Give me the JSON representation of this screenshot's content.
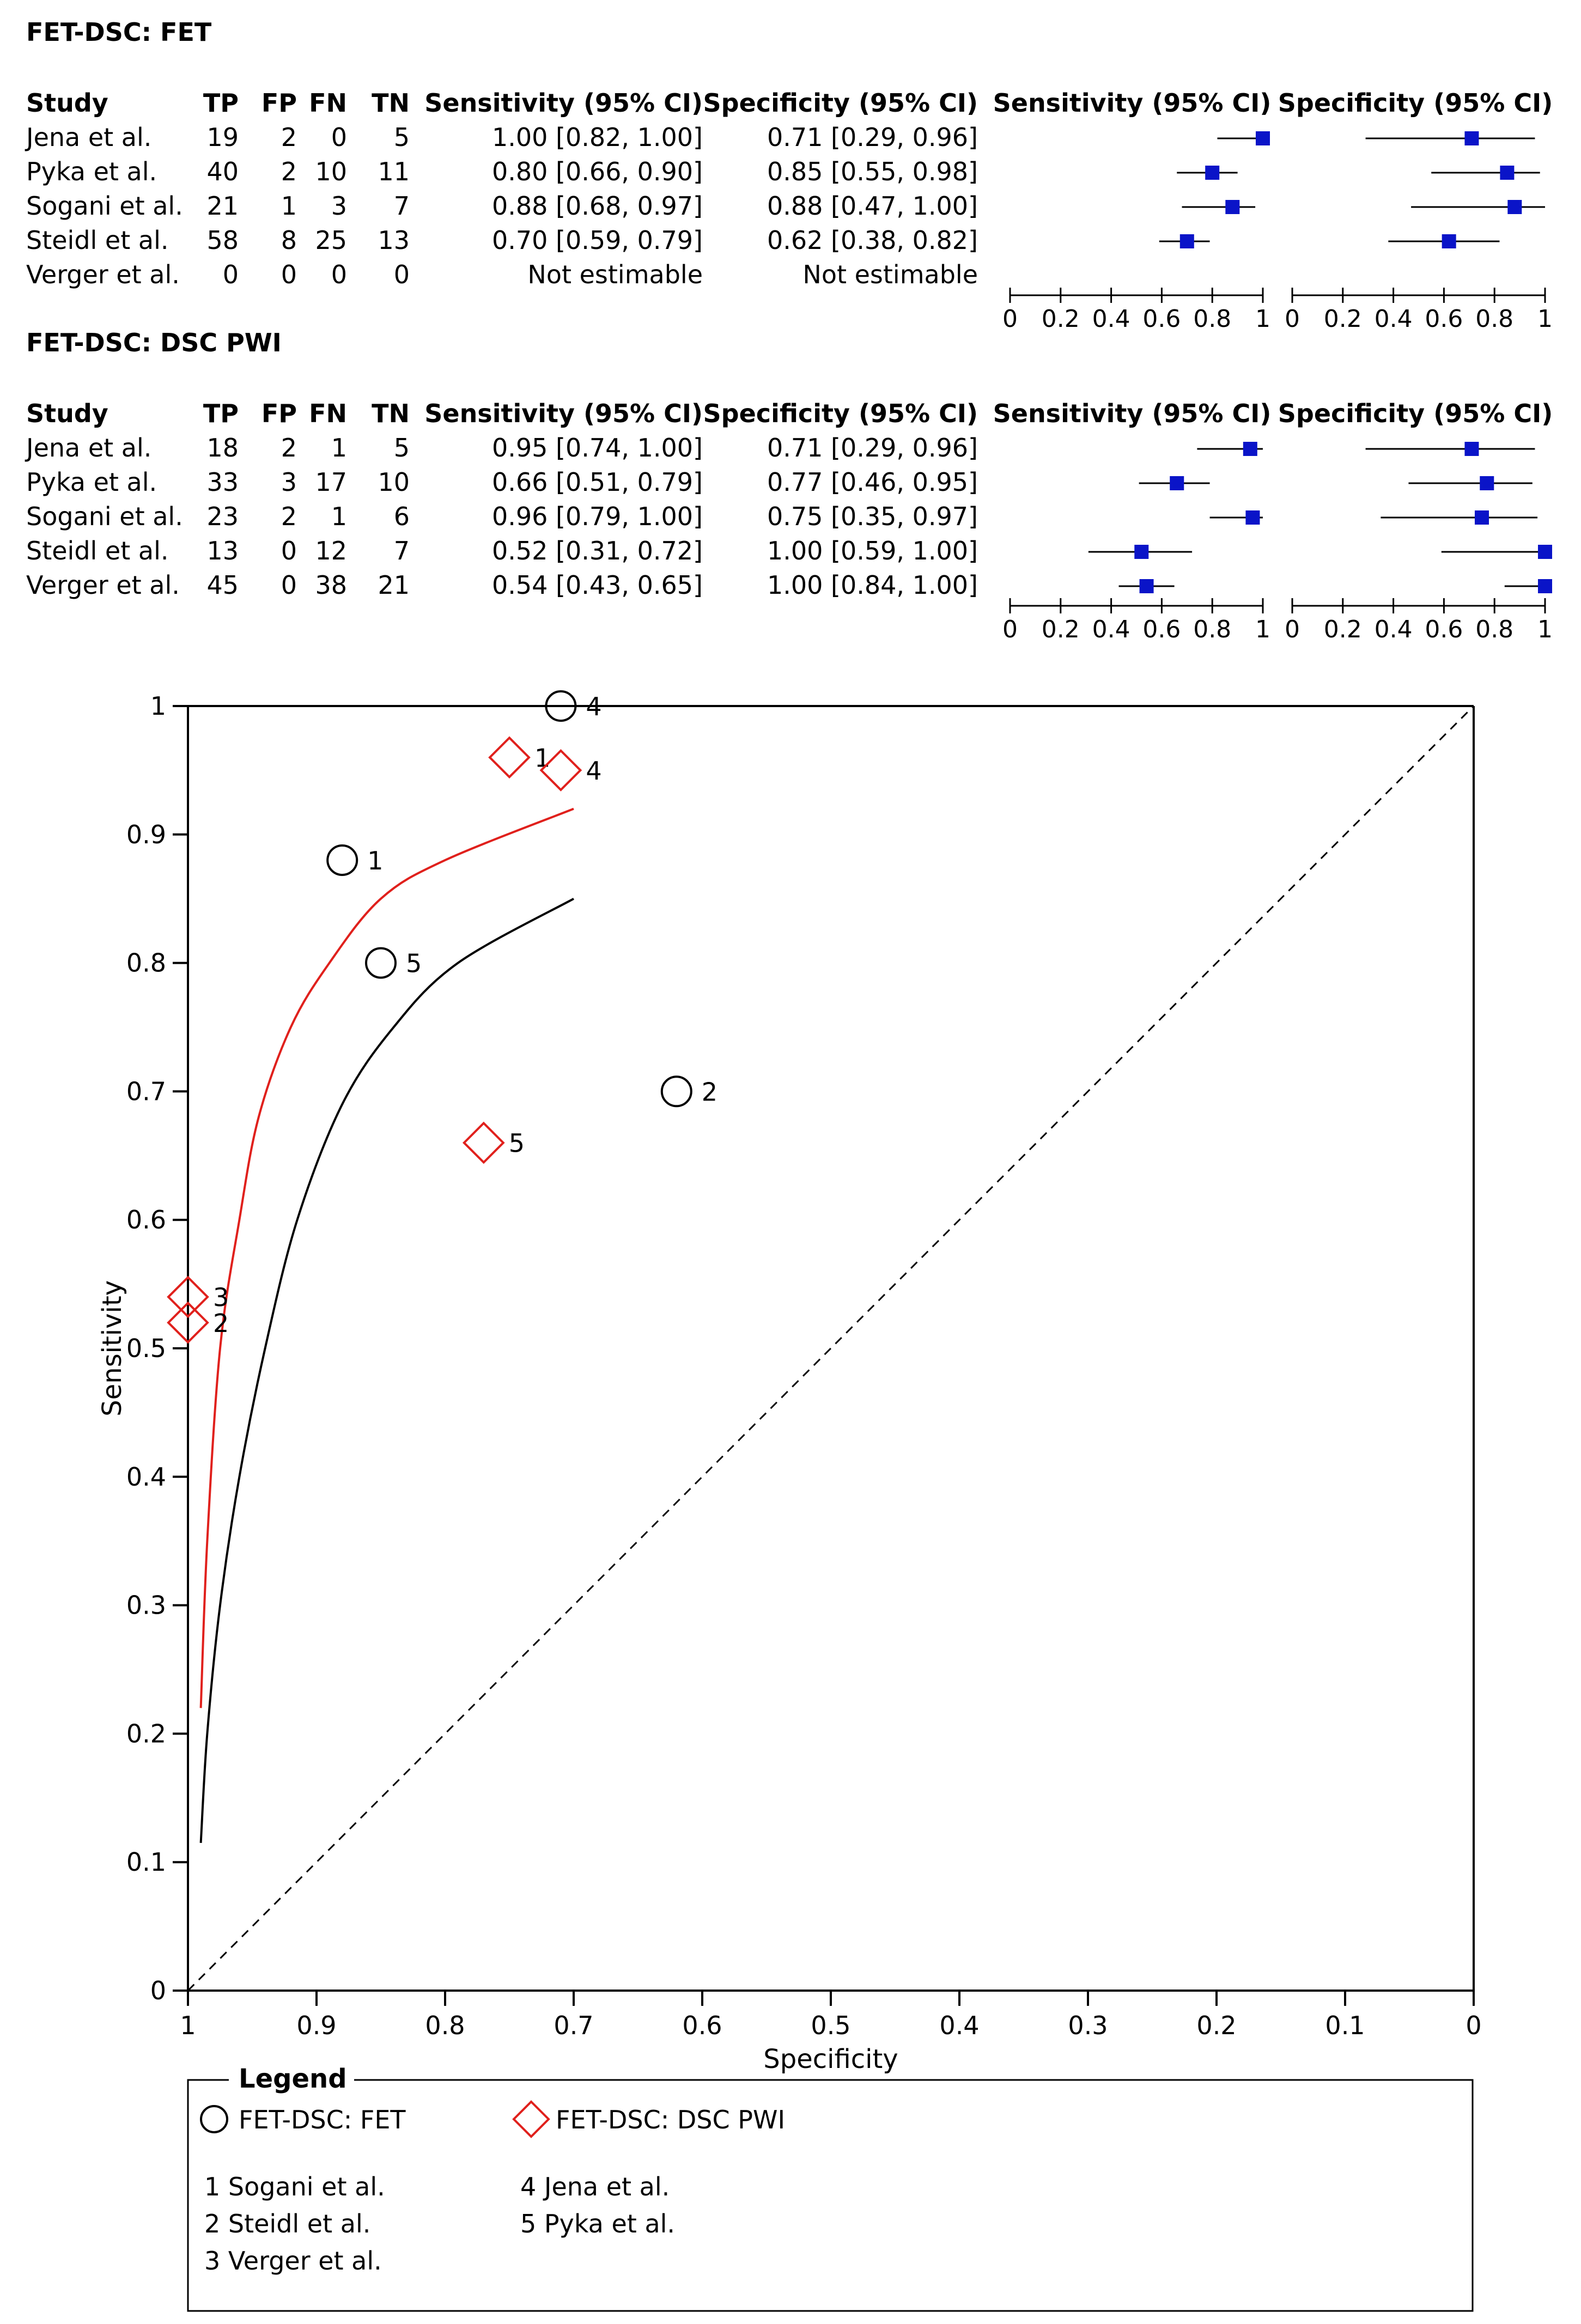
{
  "chart_data": [
    {
      "type": "table",
      "title": "FET-DSC: FET",
      "columns": [
        "Study",
        "TP",
        "FP",
        "FN",
        "TN",
        "Sensitivity (95% CI)",
        "Specificity (95% CI)"
      ],
      "forest_headers": [
        "Sensitivity (95% CI)",
        "Specificity (95% CI)"
      ],
      "rows": [
        {
          "study": "Jena et al.",
          "tp": "19",
          "fp": "2",
          "fn": "0",
          "tn": "5",
          "sens_text": "1.00 [0.82, 1.00]",
          "spec_text": "0.71 [0.29, 0.96]",
          "sens": 1.0,
          "sens_lo": 0.82,
          "sens_hi": 1.0,
          "spec": 0.71,
          "spec_lo": 0.29,
          "spec_hi": 0.96
        },
        {
          "study": "Pyka et al.",
          "tp": "40",
          "fp": "2",
          "fn": "10",
          "tn": "11",
          "sens_text": "0.80 [0.66, 0.90]",
          "spec_text": "0.85 [0.55, 0.98]",
          "sens": 0.8,
          "sens_lo": 0.66,
          "sens_hi": 0.9,
          "spec": 0.85,
          "spec_lo": 0.55,
          "spec_hi": 0.98
        },
        {
          "study": "Sogani et al.",
          "tp": "21",
          "fp": "1",
          "fn": "3",
          "tn": "7",
          "sens_text": "0.88 [0.68, 0.97]",
          "spec_text": "0.88 [0.47, 1.00]",
          "sens": 0.88,
          "sens_lo": 0.68,
          "sens_hi": 0.97,
          "spec": 0.88,
          "spec_lo": 0.47,
          "spec_hi": 1.0
        },
        {
          "study": "Steidl et al.",
          "tp": "58",
          "fp": "8",
          "fn": "25",
          "tn": "13",
          "sens_text": "0.70 [0.59, 0.79]",
          "spec_text": "0.62 [0.38, 0.82]",
          "sens": 0.7,
          "sens_lo": 0.59,
          "sens_hi": 0.79,
          "spec": 0.62,
          "spec_lo": 0.38,
          "spec_hi": 0.82
        },
        {
          "study": "Verger et al.",
          "tp": "0",
          "fp": "0",
          "fn": "0",
          "tn": "0",
          "sens_text": "Not estimable",
          "spec_text": "Not estimable",
          "sens": null,
          "sens_lo": null,
          "sens_hi": null,
          "spec": null,
          "spec_lo": null,
          "spec_hi": null
        }
      ],
      "axis_ticks": [
        "0",
        "0.2",
        "0.4",
        "0.6",
        "0.8",
        "1"
      ]
    },
    {
      "type": "table",
      "title": "FET-DSC: DSC PWI",
      "columns": [
        "Study",
        "TP",
        "FP",
        "FN",
        "TN",
        "Sensitivity (95% CI)",
        "Specificity (95% CI)"
      ],
      "forest_headers": [
        "Sensitivity (95% CI)",
        "Specificity (95% CI)"
      ],
      "rows": [
        {
          "study": "Jena et al.",
          "tp": "18",
          "fp": "2",
          "fn": "1",
          "tn": "5",
          "sens_text": "0.95 [0.74, 1.00]",
          "spec_text": "0.71 [0.29, 0.96]",
          "sens": 0.95,
          "sens_lo": 0.74,
          "sens_hi": 1.0,
          "spec": 0.71,
          "spec_lo": 0.29,
          "spec_hi": 0.96
        },
        {
          "study": "Pyka et al.",
          "tp": "33",
          "fp": "3",
          "fn": "17",
          "tn": "10",
          "sens_text": "0.66 [0.51, 0.79]",
          "spec_text": "0.77 [0.46, 0.95]",
          "sens": 0.66,
          "sens_lo": 0.51,
          "sens_hi": 0.79,
          "spec": 0.77,
          "spec_lo": 0.46,
          "spec_hi": 0.95
        },
        {
          "study": "Sogani et al.",
          "tp": "23",
          "fp": "2",
          "fn": "1",
          "tn": "6",
          "sens_text": "0.96 [0.79, 1.00]",
          "spec_text": "0.75 [0.35, 0.97]",
          "sens": 0.96,
          "sens_lo": 0.79,
          "sens_hi": 1.0,
          "spec": 0.75,
          "spec_lo": 0.35,
          "spec_hi": 0.97
        },
        {
          "study": "Steidl et al.",
          "tp": "13",
          "fp": "0",
          "fn": "12",
          "tn": "7",
          "sens_text": "0.52 [0.31, 0.72]",
          "spec_text": "1.00 [0.59, 1.00]",
          "sens": 0.52,
          "sens_lo": 0.31,
          "sens_hi": 0.72,
          "spec": 1.0,
          "spec_lo": 0.59,
          "spec_hi": 1.0
        },
        {
          "study": "Verger et al.",
          "tp": "45",
          "fp": "0",
          "fn": "38",
          "tn": "21",
          "sens_text": "0.54 [0.43, 0.65]",
          "spec_text": "1.00 [0.84, 1.00]",
          "sens": 0.54,
          "sens_lo": 0.43,
          "sens_hi": 0.65,
          "spec": 1.0,
          "spec_lo": 0.84,
          "spec_hi": 1.0
        }
      ],
      "axis_ticks": [
        "0",
        "0.2",
        "0.4",
        "0.6",
        "0.8",
        "1"
      ]
    },
    {
      "type": "scatter",
      "title": "",
      "xlabel": "Specificity",
      "ylabel": "Sensitivity",
      "xlim": [
        1,
        0
      ],
      "ylim": [
        0,
        1
      ],
      "x_ticks": [
        "1",
        "0.9",
        "0.8",
        "0.7",
        "0.6",
        "0.5",
        "0.4",
        "0.3",
        "0.2",
        "0.1",
        "0"
      ],
      "y_ticks": [
        "0",
        "0.1",
        "0.2",
        "0.3",
        "0.4",
        "0.5",
        "0.6",
        "0.7",
        "0.8",
        "0.9",
        "1"
      ],
      "diagonal": true,
      "colors": {
        "fet": "#000000",
        "dsc": "#e0201c"
      },
      "series": [
        {
          "name": "FET-DSC: FET",
          "marker": "circle",
          "color": "#000000",
          "points": [
            {
              "label": "4",
              "specificity": 0.71,
              "sensitivity": 1.0
            },
            {
              "label": "1",
              "specificity": 0.88,
              "sensitivity": 0.88
            },
            {
              "label": "5",
              "specificity": 0.85,
              "sensitivity": 0.8
            },
            {
              "label": "2",
              "specificity": 0.62,
              "sensitivity": 0.7
            }
          ],
          "sroc_curve": [
            [
              0.99,
              0.115
            ],
            [
              0.985,
              0.2
            ],
            [
              0.975,
              0.3
            ],
            [
              0.96,
              0.4
            ],
            [
              0.94,
              0.5
            ],
            [
              0.915,
              0.6
            ],
            [
              0.88,
              0.69
            ],
            [
              0.84,
              0.75
            ],
            [
              0.79,
              0.8
            ],
            [
              0.7,
              0.85
            ]
          ]
        },
        {
          "name": "FET-DSC: DSC PWI",
          "marker": "diamond",
          "color": "#e0201c",
          "points": [
            {
              "label": "1",
              "specificity": 0.75,
              "sensitivity": 0.96
            },
            {
              "label": "4",
              "specificity": 0.71,
              "sensitivity": 0.95
            },
            {
              "label": "5",
              "specificity": 0.77,
              "sensitivity": 0.66
            },
            {
              "label": "3",
              "specificity": 1.0,
              "sensitivity": 0.54
            },
            {
              "label": "2",
              "specificity": 1.0,
              "sensitivity": 0.52
            }
          ],
          "sroc_curve": [
            [
              0.99,
              0.22
            ],
            [
              0.985,
              0.35
            ],
            [
              0.975,
              0.5
            ],
            [
              0.96,
              0.6
            ],
            [
              0.945,
              0.68
            ],
            [
              0.92,
              0.75
            ],
            [
              0.89,
              0.8
            ],
            [
              0.85,
              0.85
            ],
            [
              0.8,
              0.88
            ],
            [
              0.7,
              0.92
            ]
          ]
        }
      ],
      "legend": {
        "title": "Legend",
        "entries": [
          "FET-DSC: FET",
          "FET-DSC: DSC PWI"
        ],
        "studies": [
          "1 Sogani et al.",
          "2 Steidl et al.",
          "3 Verger et al.",
          "4 Jena et al.",
          "5 Pyka et al."
        ]
      }
    }
  ]
}
